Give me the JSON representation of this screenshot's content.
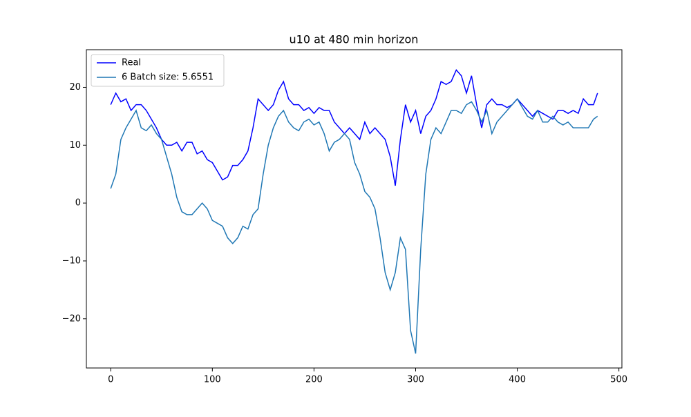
{
  "chart_data": {
    "type": "line",
    "title": "u10 at 480 min horizon",
    "x": [
      0,
      5,
      10,
      15,
      20,
      25,
      30,
      35,
      40,
      45,
      50,
      55,
      60,
      65,
      70,
      75,
      80,
      85,
      90,
      95,
      100,
      105,
      110,
      115,
      120,
      125,
      130,
      135,
      140,
      145,
      150,
      155,
      160,
      165,
      170,
      175,
      180,
      185,
      190,
      195,
      200,
      205,
      210,
      215,
      220,
      225,
      230,
      235,
      240,
      245,
      250,
      255,
      260,
      265,
      270,
      275,
      280,
      285,
      290,
      295,
      300,
      305,
      310,
      315,
      320,
      325,
      330,
      335,
      340,
      345,
      350,
      355,
      360,
      365,
      370,
      375,
      380,
      385,
      390,
      395,
      400,
      405,
      410,
      415,
      420,
      425,
      430,
      435,
      440,
      445,
      450,
      455,
      460,
      465,
      470,
      475,
      479
    ],
    "series": [
      {
        "name": "Real",
        "color": "#0000ff",
        "values": [
          17,
          19,
          17.5,
          18,
          16,
          17,
          17,
          16,
          14.5,
          13,
          11,
          10,
          10,
          10.5,
          9,
          10.5,
          10.5,
          8.5,
          9,
          7.5,
          7,
          5.5,
          4,
          4.5,
          6.5,
          6.5,
          7.5,
          9,
          13,
          18,
          17,
          16,
          17,
          19.5,
          21,
          18,
          17,
          17,
          16,
          16.5,
          15.5,
          16.5,
          16,
          16,
          14,
          13,
          12,
          13,
          12,
          11,
          14,
          12,
          13,
          12,
          11,
          8,
          3,
          11,
          17,
          14,
          16,
          12,
          15,
          16,
          18,
          21,
          20.5,
          21,
          23,
          22,
          19,
          22,
          17,
          13,
          17,
          18,
          17,
          17,
          16.5,
          17,
          18,
          17,
          16,
          15,
          16,
          15.5,
          15,
          14.5,
          16,
          16,
          15.5,
          16,
          15.5,
          18,
          17,
          17,
          19
        ]
      },
      {
        "name": "6 Batch size: 5.6551",
        "color": "#1f77b4",
        "values": [
          2.5,
          5,
          11,
          13,
          14.5,
          16,
          13,
          12.5,
          13.5,
          12,
          11,
          8,
          5,
          1,
          -1.5,
          -2,
          -2,
          -1,
          0,
          -1,
          -3,
          -3.5,
          -4,
          -6,
          -7,
          -6,
          -4,
          -4.5,
          -2,
          -1,
          5,
          10,
          13,
          15,
          16,
          14,
          13,
          12.5,
          14,
          14.5,
          13.5,
          14,
          12,
          9,
          10.5,
          11,
          12,
          11,
          7,
          5,
          2,
          1,
          -1,
          -6,
          -12,
          -15,
          -12,
          -6,
          -8,
          -22,
          -26,
          -8,
          5,
          11,
          13,
          12,
          14,
          16,
          16,
          15.5,
          17,
          17.5,
          16,
          14,
          16,
          12,
          14,
          15,
          16,
          17,
          18,
          16.5,
          15,
          14.5,
          16,
          14,
          14,
          15,
          14,
          13.5,
          14,
          13,
          13,
          13,
          13,
          14.5,
          15
        ]
      }
    ],
    "xlim": [
      -23.95,
      502.95
    ],
    "xticks": [
      0,
      100,
      200,
      300,
      400,
      500
    ],
    "ylim": [
      -28.5,
      26.5
    ],
    "yticks": [
      {
        "value": -20,
        "label": "−20"
      },
      {
        "value": -10,
        "label": "−10"
      },
      0,
      10,
      20
    ],
    "legend": "upper left"
  }
}
